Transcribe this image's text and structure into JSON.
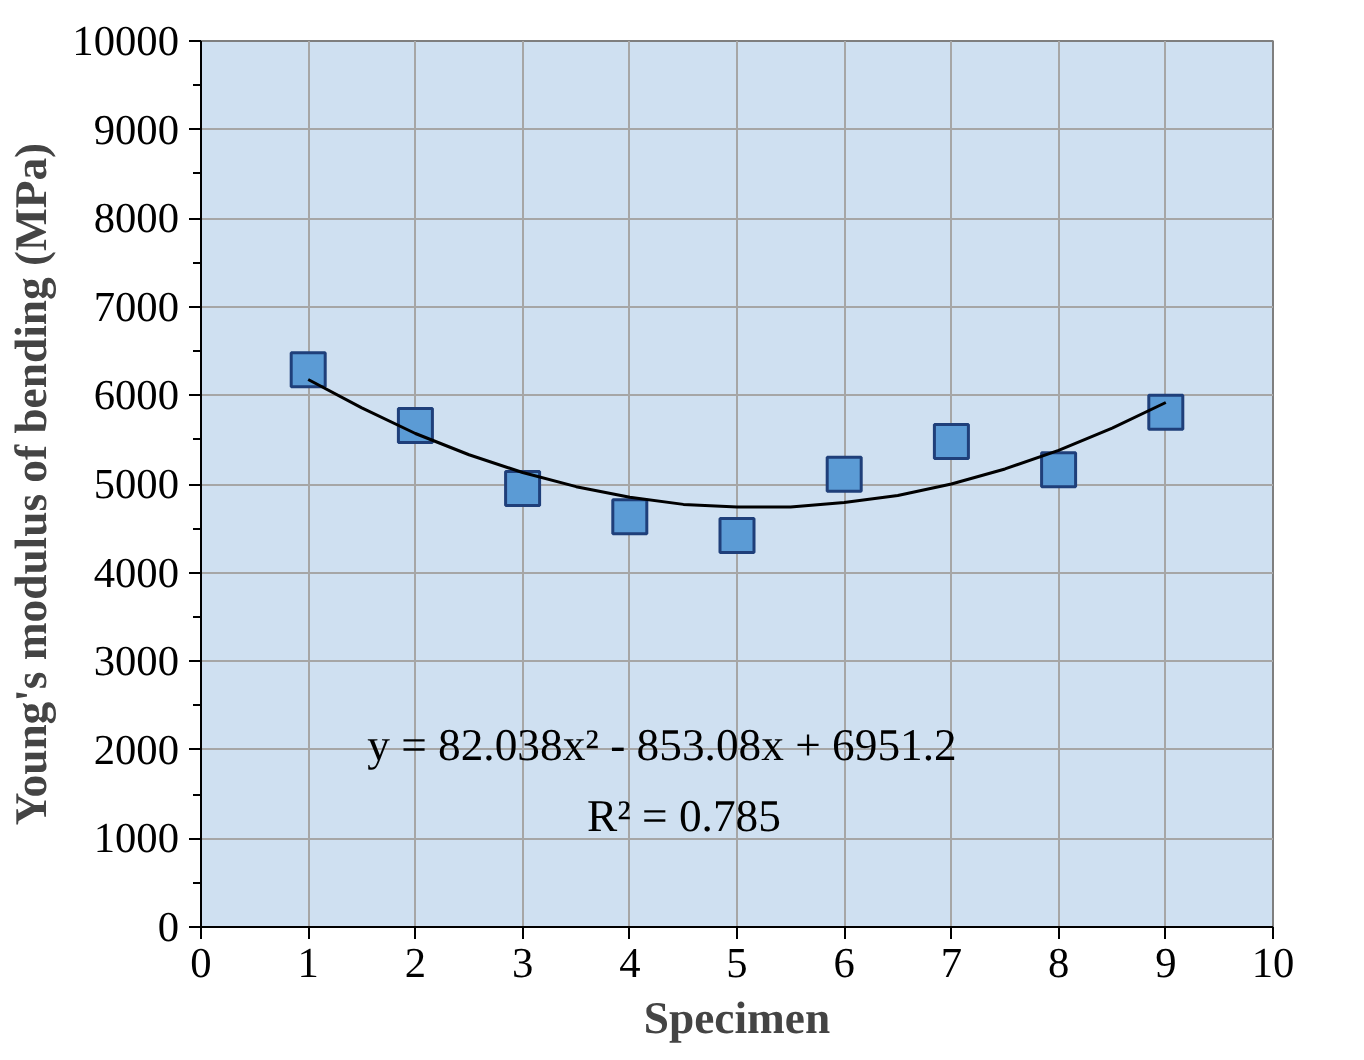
{
  "chart_data": {
    "type": "scatter",
    "xlabel": "Specimen",
    "ylabel": "Young's modulus of bending (MPa)",
    "xlim": [
      0,
      10
    ],
    "ylim": [
      0,
      10000
    ],
    "xticks": [
      0,
      1,
      2,
      3,
      4,
      5,
      6,
      7,
      8,
      9,
      10
    ],
    "yticks": [
      0,
      1000,
      2000,
      3000,
      4000,
      5000,
      6000,
      7000,
      8000,
      9000,
      10000
    ],
    "grid": true,
    "x": [
      1,
      2,
      3,
      4,
      5,
      6,
      7,
      8,
      9
    ],
    "series": [
      {
        "color": "#5b9bd5",
        "marker": "square",
        "values": [
          6290,
          5660,
          4950,
          4630,
          4420,
          5110,
          5480,
          5160,
          5810
        ]
      },
      {
        "type": "line",
        "color": "#000000",
        "line_style": "solid",
        "x": [
          1,
          1.5,
          2,
          2.5,
          3,
          3.5,
          4,
          4.5,
          5,
          5.5,
          6,
          6.5,
          7,
          7.5,
          8,
          8.5,
          9
        ],
        "values": [
          6180,
          5860,
          5570,
          5330,
          5130,
          4970,
          4850,
          4770,
          4740,
          4740,
          4790,
          4870,
          5000,
          5170,
          5380,
          5630,
          5920
        ]
      }
    ],
    "annotations": [
      "y = 82.038x² - 853.08x + 6951.2",
      "R² = 0.785"
    ]
  }
}
